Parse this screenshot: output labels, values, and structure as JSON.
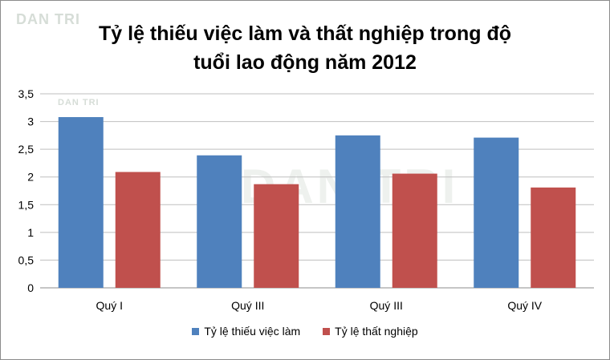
{
  "watermark": {
    "text": "DAN TRI"
  },
  "chart_data": {
    "type": "bar",
    "title_lines": [
      "Tỷ lệ thiếu việc làm và thất nghiệp trong độ",
      "tuổi lao động năm 2012"
    ],
    "categories": [
      "Quý I",
      "Quý III",
      "Quý III",
      "Quý IV"
    ],
    "series": [
      {
        "name": "Tỷ lệ thiếu  việc  làm",
        "color": "#4f81bd",
        "values": [
          3.08,
          2.39,
          2.75,
          2.71
        ]
      },
      {
        "name": "Tỷ lệ thất  nghiệp",
        "color": "#c0504d",
        "values": [
          2.09,
          1.87,
          2.06,
          1.81
        ]
      }
    ],
    "yticks": [
      "0",
      "0,5",
      "1",
      "1,5",
      "2",
      "2,5",
      "3",
      "3,5"
    ],
    "ylim": [
      0,
      3.5
    ],
    "grid": true,
    "legend_position": "bottom"
  }
}
